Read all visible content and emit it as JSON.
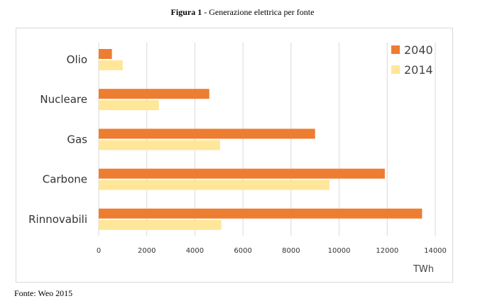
{
  "caption": {
    "prefix": "Figura 1",
    "text": " - Generazione elettrica per fonte"
  },
  "source": "Fonte: Weo 2015",
  "chart_data": {
    "type": "bar",
    "orientation": "horizontal",
    "categories": [
      "Olio",
      "Nucleare",
      "Gas",
      "Carbone",
      "Rinnovabili"
    ],
    "series": [
      {
        "name": "2040",
        "color": "#ed7d31",
        "values": [
          550,
          4600,
          9000,
          11900,
          13450
        ]
      },
      {
        "name": "2014",
        "color": "#ffe699",
        "values": [
          1000,
          2500,
          5050,
          9600,
          5100
        ]
      }
    ],
    "xlim": [
      0,
      14000
    ],
    "xticks": [
      0,
      2000,
      4000,
      6000,
      8000,
      10000,
      12000,
      14000
    ],
    "xlabel": "TWh",
    "grid": true,
    "legend_position": "top-right"
  }
}
